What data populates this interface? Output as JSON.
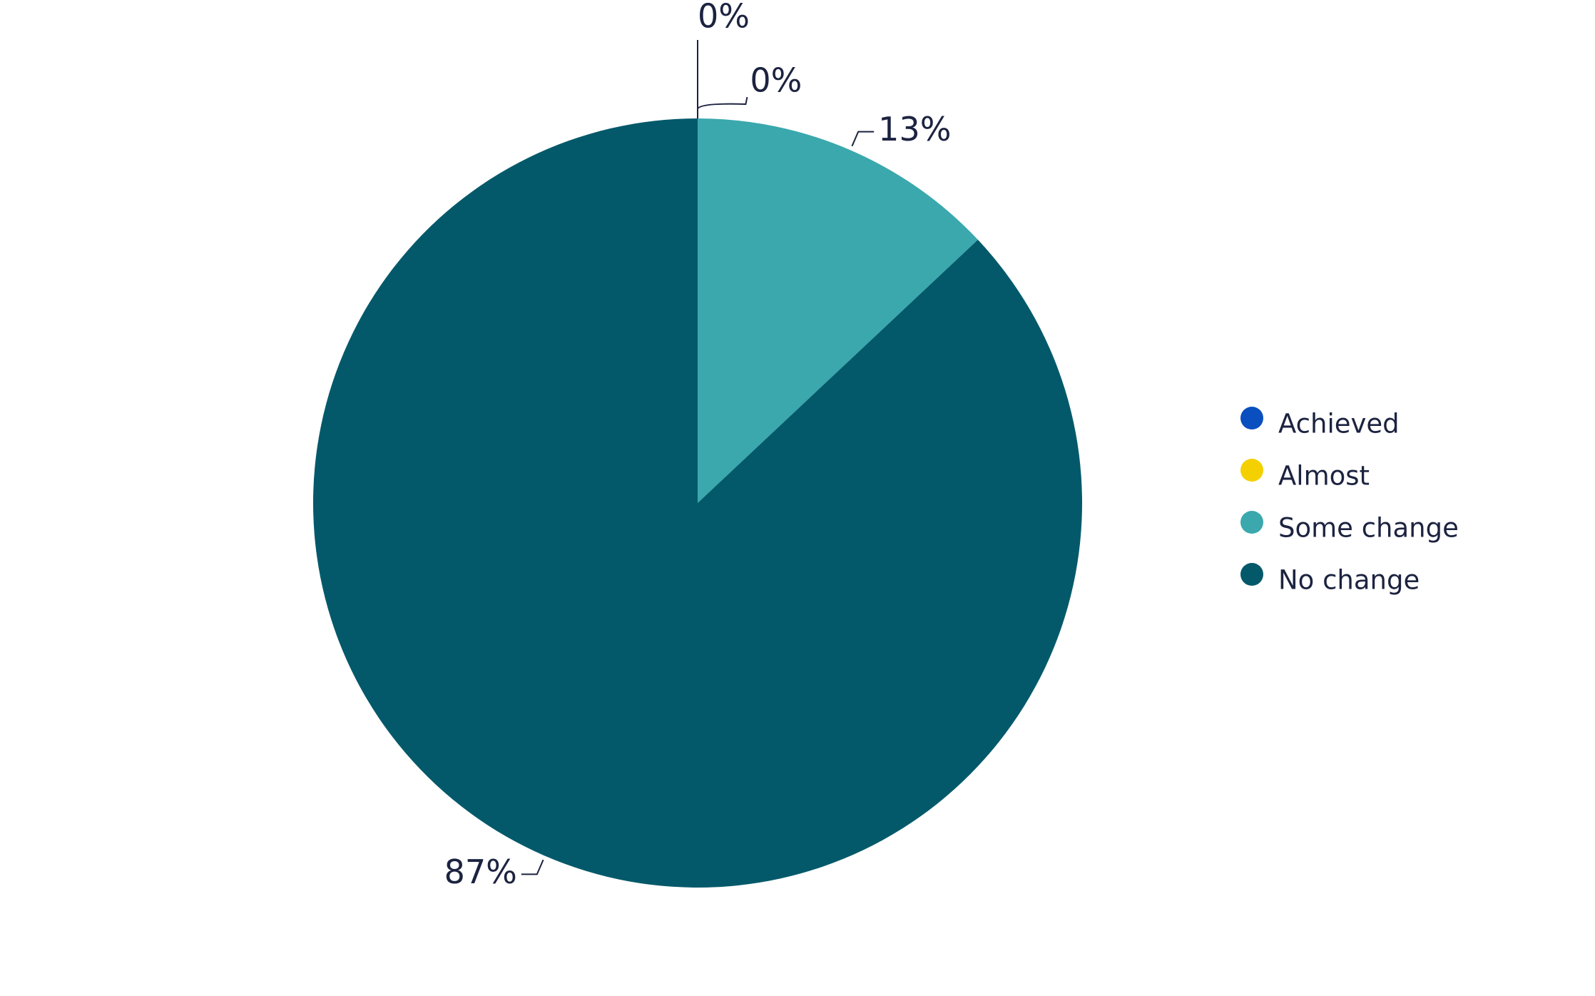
{
  "chart_data": {
    "type": "pie",
    "categories": [
      "Achieved",
      "Almost",
      "Some change",
      "No change"
    ],
    "values": [
      0,
      0,
      13,
      87
    ],
    "value_labels": [
      "0%",
      "0%",
      "13%",
      "87%"
    ],
    "colors": [
      "#0a4fbf",
      "#f5d000",
      "#3aa8ad",
      "#03596a"
    ],
    "legend": "right"
  }
}
